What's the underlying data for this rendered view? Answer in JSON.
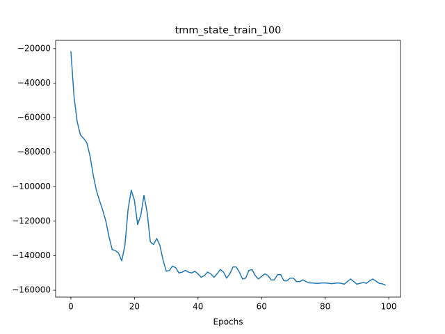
{
  "chart_data": {
    "type": "line",
    "title": "tmm_state_train_100",
    "x_label": "Epochs",
    "color": "#1f77b4",
    "x": [
      0,
      1,
      2,
      3,
      4,
      5,
      6,
      7,
      8,
      9,
      10,
      11,
      12,
      13,
      14,
      15,
      16,
      17,
      18,
      19,
      20,
      21,
      22,
      23,
      24,
      25,
      26,
      27,
      28,
      29,
      30,
      31,
      32,
      33,
      34,
      35,
      36,
      37,
      38,
      39,
      40,
      41,
      42,
      43,
      44,
      45,
      46,
      47,
      48,
      49,
      50,
      51,
      52,
      53,
      54,
      55,
      56,
      57,
      58,
      59,
      60,
      61,
      62,
      63,
      64,
      65,
      66,
      67,
      68,
      69,
      70,
      71,
      72,
      73,
      74,
      75,
      76,
      77,
      78,
      79,
      80,
      81,
      82,
      83,
      84,
      85,
      86,
      87,
      88,
      89,
      90,
      91,
      92,
      93,
      94,
      95,
      96,
      97,
      98,
      99
    ],
    "values": [
      -21500,
      -48000,
      -62500,
      -70000,
      -72000,
      -74500,
      -82000,
      -93000,
      -102000,
      -108000,
      -113500,
      -120000,
      -129000,
      -136500,
      -137000,
      -138500,
      -143000,
      -134000,
      -113000,
      -102000,
      -108000,
      -122000,
      -116500,
      -105000,
      -115000,
      -132000,
      -133500,
      -130000,
      -134000,
      -142500,
      -149000,
      -148500,
      -146000,
      -147000,
      -150000,
      -149500,
      -148500,
      -149500,
      -150000,
      -149000,
      -150500,
      -152500,
      -151500,
      -149500,
      -150500,
      -152500,
      -150500,
      -148000,
      -149500,
      -153000,
      -150500,
      -146500,
      -146500,
      -149500,
      -153500,
      -153000,
      -148500,
      -148000,
      -151500,
      -153500,
      -152000,
      -150500,
      -151500,
      -154000,
      -154000,
      -151000,
      -151000,
      -154500,
      -154500,
      -153000,
      -153000,
      -155000,
      -155000,
      -154000,
      -155000,
      -155800,
      -155800,
      -156000,
      -156000,
      -155800,
      -155800,
      -156000,
      -156200,
      -156000,
      -155800,
      -156000,
      -156500,
      -155000,
      -153500,
      -155000,
      -156500,
      -156000,
      -155500,
      -156000,
      -154500,
      -153500,
      -154800,
      -156000,
      -156300,
      -157000
    ],
    "xlim": [
      -4.8,
      103.7
    ],
    "xticks": [
      0,
      20,
      40,
      60,
      80,
      100
    ],
    "ylim": [
      -164000,
      -15200
    ],
    "yticks": [
      {
        "value": -20000,
        "label": "−20000"
      },
      {
        "value": -40000,
        "label": "−40000"
      },
      {
        "value": -60000,
        "label": "−60000"
      },
      {
        "value": -80000,
        "label": "−80000"
      },
      {
        "value": -100000,
        "label": "−100000"
      },
      {
        "value": -120000,
        "label": "−120000"
      },
      {
        "value": -140000,
        "label": "−140000"
      },
      {
        "value": -160000,
        "label": "−160000"
      }
    ],
    "grid": false
  }
}
